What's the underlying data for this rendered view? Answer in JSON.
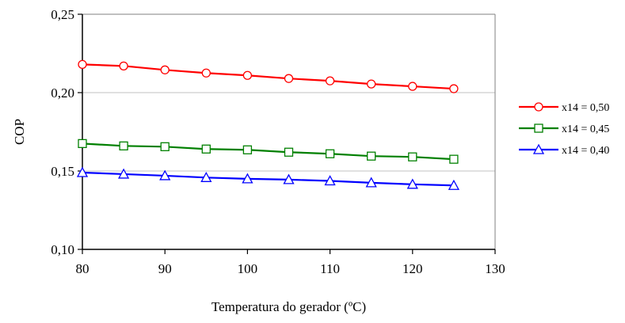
{
  "chart_data": {
    "type": "line",
    "title": "",
    "xlabel": "Temperatura do gerador (ºC)",
    "ylabel": "COP",
    "xlim": [
      80,
      130
    ],
    "ylim": [
      0.1,
      0.25
    ],
    "x_ticks": [
      "80",
      "90",
      "100",
      "110",
      "120",
      "130"
    ],
    "y_ticks": [
      "0,10",
      "0,15",
      "0,20",
      "0,25"
    ],
    "grid": "horizontal",
    "legend_position": "right",
    "x": [
      80,
      85,
      90,
      95,
      100,
      105,
      110,
      115,
      120,
      125
    ],
    "series": [
      {
        "name": "x14 = 0,50",
        "color": "#ff0000",
        "marker": "circle",
        "values": [
          0.218,
          0.217,
          0.2145,
          0.2125,
          0.211,
          0.209,
          0.2075,
          0.2055,
          0.204,
          0.2025
        ]
      },
      {
        "name": "x14 = 0,45",
        "color": "#008000",
        "marker": "square",
        "values": [
          0.1675,
          0.166,
          0.1655,
          0.164,
          0.1635,
          0.162,
          0.161,
          0.1595,
          0.159,
          0.1575
        ]
      },
      {
        "name": "x14 = 0,40",
        "color": "#0000ff",
        "marker": "triangle",
        "values": [
          0.149,
          0.148,
          0.147,
          0.1458,
          0.145,
          0.1445,
          0.1437,
          0.1425,
          0.1415,
          0.1408
        ]
      }
    ]
  }
}
